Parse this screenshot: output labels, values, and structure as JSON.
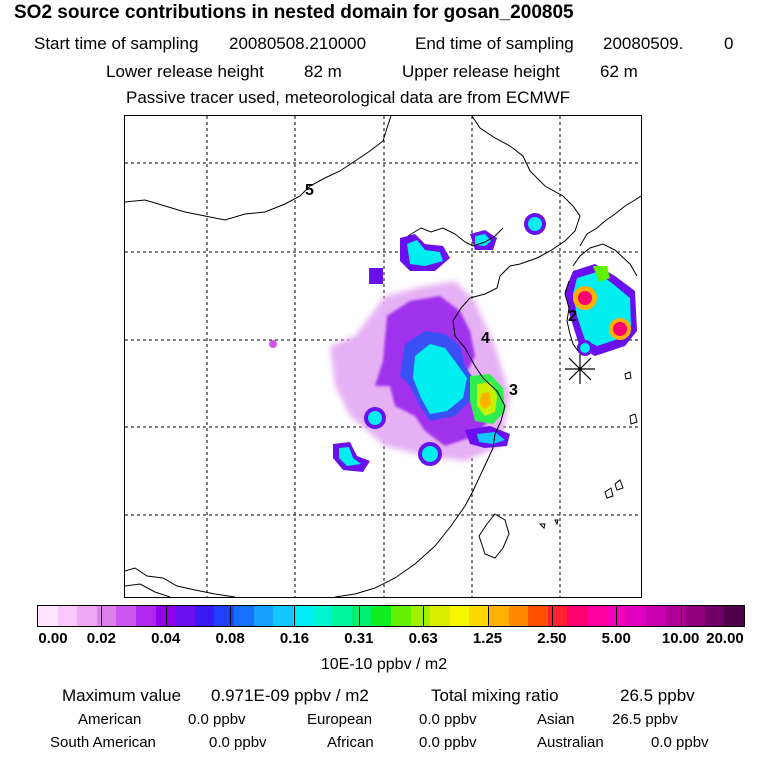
{
  "header": {
    "title": "SO2 source contributions in nested domain for gosan_200805",
    "start_label": "Start time of sampling",
    "start_value": "20080508.210000",
    "end_label": "End time of sampling",
    "end_value": "20080509.",
    "end_extra": "0",
    "lower_label": "Lower release height",
    "lower_value": "82 m",
    "upper_label": "Upper release height",
    "upper_value": "62 m",
    "note": "Passive tracer used, meteorological data are from ECMWF"
  },
  "map": {
    "markers": [
      {
        "id": "5",
        "label": "5"
      },
      {
        "id": "4",
        "label": "4"
      },
      {
        "id": "3",
        "label": "3"
      },
      {
        "id": "2",
        "label": "2"
      }
    ],
    "receptor_symbol": "✳"
  },
  "colorbar": {
    "colors": [
      "#ffe4ff",
      "#f8c8fa",
      "#f0a8f4",
      "#e080ee",
      "#cc55ee",
      "#b028ee",
      "#9000ee",
      "#6a10ee",
      "#3a1af4",
      "#2040ff",
      "#1870ff",
      "#18a0ff",
      "#10c8ff",
      "#00ecf6",
      "#00f6d0",
      "#00f6a0",
      "#00ee70",
      "#10ee20",
      "#60f000",
      "#a0f000",
      "#d8f000",
      "#f6f600",
      "#ffd800",
      "#ffb000",
      "#ff8800",
      "#ff5000",
      "#ff2030",
      "#ff0070",
      "#ff00a0",
      "#f400b8",
      "#e000c0",
      "#c800b0",
      "#b00098",
      "#900080",
      "#700068",
      "#500048"
    ],
    "ticks": [
      "0.00",
      "0.02",
      "0.04",
      "0.08",
      "0.16",
      "0.31",
      "0.63",
      "1.25",
      "2.50",
      "5.00",
      "10.00",
      "20.00"
    ],
    "unit": "10E-10 ppbv / m2"
  },
  "stats": {
    "max_label": "Maximum value",
    "max_value": "0.971E-09 ppbv / m2",
    "total_label": "Total mixing ratio",
    "total_value": "26.5 ppbv",
    "sources": [
      {
        "name": "American",
        "value": "0.0 ppbv"
      },
      {
        "name": "European",
        "value": "0.0 ppbv"
      },
      {
        "name": "Asian",
        "value": "26.5 ppbv"
      },
      {
        "name": "South American",
        "value": "0.0 ppbv"
      },
      {
        "name": "African",
        "value": "0.0 ppbv"
      },
      {
        "name": "Australian",
        "value": "0.0 ppbv"
      }
    ]
  }
}
